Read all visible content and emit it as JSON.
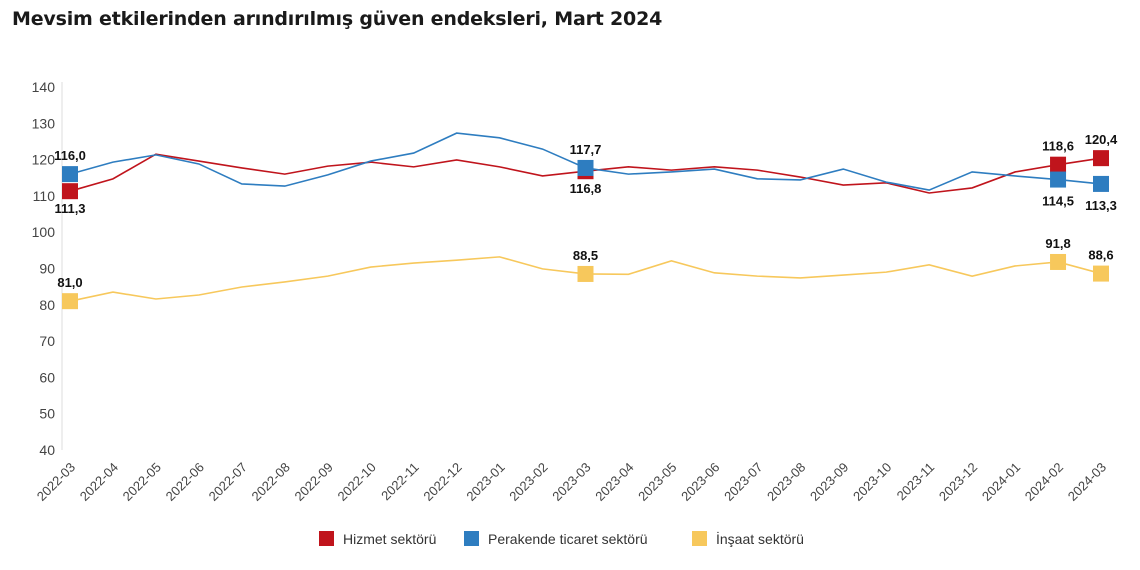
{
  "chart_data": {
    "type": "line",
    "title": "Mevsim etkilerinden arındırılmış güven endeksleri, Mart 2024",
    "xlabel": "",
    "ylabel": "",
    "ylim": [
      40,
      140
    ],
    "yticks": [
      40,
      50,
      60,
      70,
      80,
      90,
      100,
      110,
      120,
      130,
      140
    ],
    "grid": false,
    "legend_position": "bottom",
    "categories": [
      "2022-03",
      "2022-04",
      "2022-05",
      "2022-06",
      "2022-07",
      "2022-08",
      "2022-09",
      "2022-10",
      "2022-11",
      "2022-12",
      "2023-01",
      "2023-02",
      "2023-03",
      "2023-04",
      "2023-05",
      "2023-06",
      "2023-07",
      "2023-08",
      "2023-09",
      "2023-10",
      "2023-11",
      "2023-12",
      "2024-01",
      "2024-02",
      "2024-03"
    ],
    "series": [
      {
        "name": "Hizmet sektörü",
        "color": "#c0141c",
        "values": [
          111.3,
          114.7,
          121.5,
          119.6,
          117.7,
          116.0,
          118.2,
          119.3,
          118.0,
          119.9,
          118.0,
          115.5,
          116.8,
          118.0,
          117.1,
          118.0,
          117.1,
          115.2,
          113.0,
          113.6,
          110.8,
          112.2,
          116.6,
          118.6,
          120.4
        ],
        "labels": {
          "0": "111,3",
          "12": "116,8",
          "23": "118,6",
          "24": "120,4"
        }
      },
      {
        "name": "Perakende ticaret sektörü",
        "color": "#2e7dc0",
        "values": [
          116.0,
          119.3,
          121.3,
          118.8,
          113.3,
          112.7,
          115.8,
          119.6,
          121.8,
          127.3,
          126.0,
          122.9,
          117.7,
          116.0,
          116.6,
          117.4,
          114.7,
          114.4,
          117.4,
          113.8,
          111.6,
          116.6,
          115.5,
          114.5,
          113.3
        ],
        "labels": {
          "0": "116,0",
          "12": "117,7",
          "23": "114,5",
          "24": "113,3"
        }
      },
      {
        "name": "İnşaat sektörü",
        "color": "#f7c85c",
        "values": [
          81.0,
          83.5,
          81.6,
          82.7,
          84.9,
          86.3,
          87.9,
          90.4,
          91.5,
          92.3,
          93.2,
          89.9,
          88.5,
          88.4,
          92.1,
          88.8,
          87.9,
          87.4,
          88.2,
          89.0,
          91.0,
          87.9,
          90.7,
          91.8,
          88.6
        ],
        "labels": {
          "0": "81,0",
          "12": "88,5",
          "23": "91,8",
          "24": "88,6"
        }
      }
    ]
  }
}
